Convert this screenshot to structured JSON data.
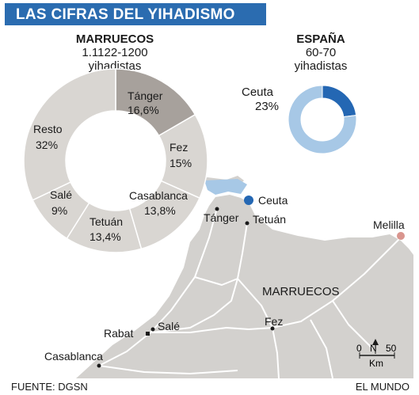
{
  "title": "LAS CIFRAS DEL YIHADISMO",
  "chart_data": [
    {
      "type": "pie",
      "heading": "MARRUECOS",
      "subheading": "1.1122-1200",
      "unit": "yihadistas",
      "slices": [
        {
          "label": "Tánger",
          "value": 16.6,
          "value_text": "16,6%",
          "color": "#a7a19c"
        },
        {
          "label": "Fez",
          "value": 15,
          "value_text": "15%",
          "color": "#d9d6d2"
        },
        {
          "label": "Casablanca",
          "value": 13.8,
          "value_text": "13,8%",
          "color": "#d9d6d2"
        },
        {
          "label": "Tetuán",
          "value": 13.4,
          "value_text": "13,4%",
          "color": "#d9d6d2"
        },
        {
          "label": "Salé",
          "value": 9,
          "value_text": "9%",
          "color": "#d9d6d2"
        },
        {
          "label": "Resto",
          "value": 32,
          "value_text": "32%",
          "color": "#d9d6d2"
        }
      ]
    },
    {
      "type": "pie",
      "heading": "ESPAÑA",
      "subheading": "60-70",
      "unit": "yihadistas",
      "slices": [
        {
          "label": "Ceuta",
          "value": 23,
          "value_text": "23%",
          "color": "#2467b3"
        },
        {
          "label": "",
          "value": 77,
          "value_text": "",
          "color": "#a7c8e6"
        }
      ]
    }
  ],
  "map": {
    "country_label": "MARRUECOS",
    "cities": [
      "Ceuta",
      "Tánger",
      "Tetuán",
      "Melilla",
      "Rabat",
      "Salé",
      "Fez",
      "Casablanca"
    ],
    "scale": {
      "start": "0",
      "end": "50",
      "unit": "Km",
      "north": "N"
    },
    "colors": {
      "land": "#d3d1ce",
      "sea": "#ffffff",
      "roads": "#ffffff",
      "ceuta": "#2467b3",
      "melilla": "#d9958e",
      "strait": "#a7c8e6"
    }
  },
  "footer": {
    "source": "FUENTE: DGSN",
    "brand": "EL MUNDO"
  }
}
